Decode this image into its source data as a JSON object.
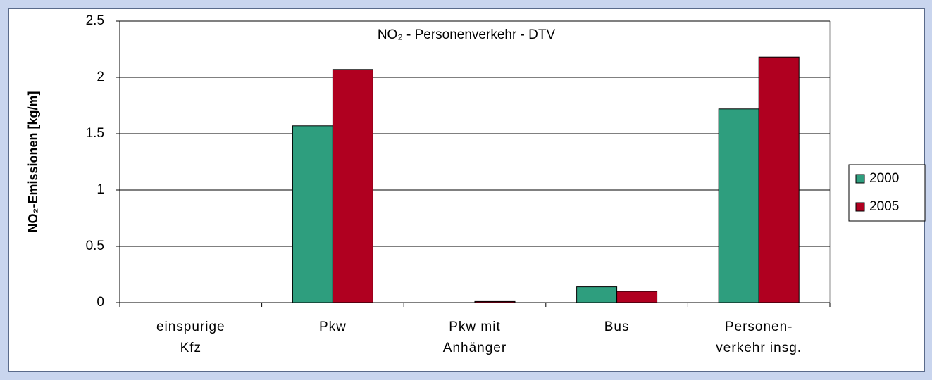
{
  "chart_data": {
    "type": "bar",
    "title": "NO₂ - Personenverkehr - DTV",
    "y_label": "NO₂-Emissionen [kg/m]",
    "categories": [
      "einspurige\nKfz",
      "Pkw",
      "Pkw  mit\nAnhänger",
      "Bus",
      "Personen-\nverkehr insg."
    ],
    "series": [
      {
        "name": "2000",
        "color": "#2e9e7e",
        "values": [
          0,
          1.57,
          0,
          0.14,
          1.72
        ]
      },
      {
        "name": "2005",
        "color": "#b00020",
        "values": [
          0,
          2.07,
          0.01,
          0.1,
          2.18
        ]
      }
    ],
    "ylim": [
      0,
      2.5
    ],
    "yticks": [
      0,
      0.5,
      1,
      1.5,
      2,
      2.5
    ],
    "grid": true,
    "legend": "right"
  }
}
